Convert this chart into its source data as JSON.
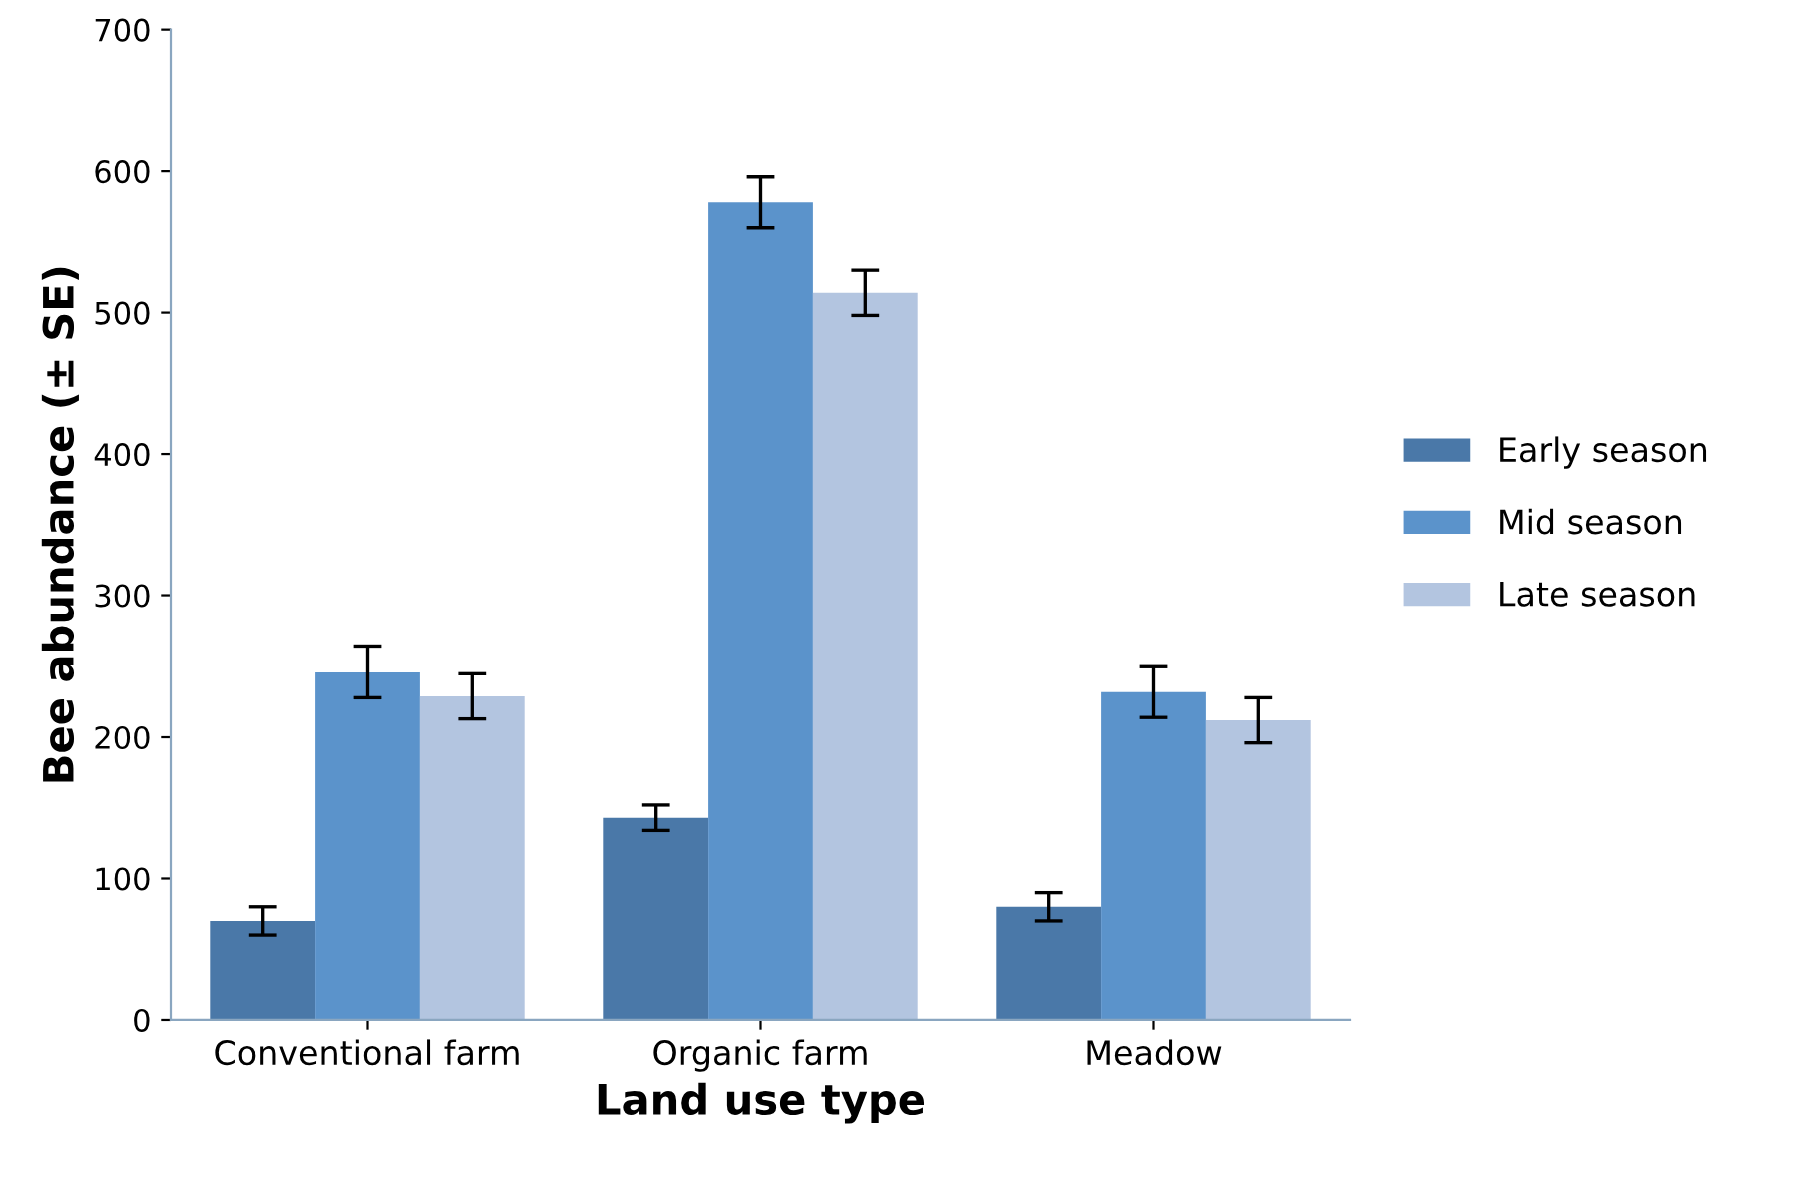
{
  "chart_data": {
    "type": "bar",
    "xlabel": "Land use type",
    "ylabel": "Bee abundance (± SE)",
    "categories": [
      "Conventional farm",
      "Organic farm",
      "Meadow"
    ],
    "series": [
      {
        "name": "Early season",
        "color": "#4a78a8",
        "values": [
          70,
          143,
          80
        ],
        "errors": [
          10,
          9,
          10
        ]
      },
      {
        "name": "Mid season",
        "color": "#5b93cb",
        "values": [
          246,
          578,
          232
        ],
        "errors": [
          18,
          18,
          18
        ]
      },
      {
        "name": "Late season",
        "color": "#b3c5e0",
        "values": [
          229,
          514,
          212
        ],
        "errors": [
          16,
          16,
          16
        ]
      }
    ],
    "ylim": [
      0,
      700
    ],
    "yticks": [
      0,
      100,
      200,
      300,
      400,
      500,
      600,
      700
    ],
    "grid": false,
    "legend": "right"
  }
}
